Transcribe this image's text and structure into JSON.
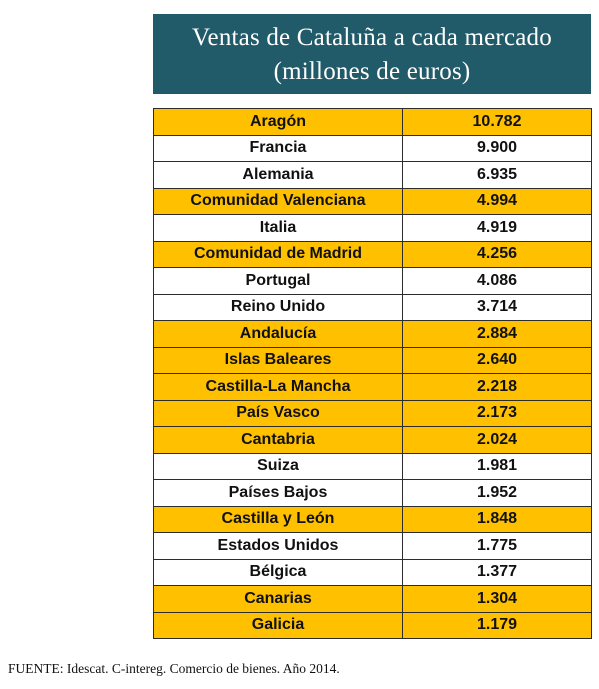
{
  "title": {
    "line1": "Ventas de Cataluña a cada mercado",
    "line2": "(millones de euros)"
  },
  "colors": {
    "title_background": "#215a68",
    "highlight_row": "#ffc000",
    "plain_row": "#ffffff"
  },
  "rows": [
    {
      "market": "Aragón",
      "value": "10.782",
      "highlighted": true
    },
    {
      "market": "Francia",
      "value": "9.900",
      "highlighted": false
    },
    {
      "market": "Alemania",
      "value": "6.935",
      "highlighted": false
    },
    {
      "market": "Comunidad Valenciana",
      "value": "4.994",
      "highlighted": true
    },
    {
      "market": "Italia",
      "value": "4.919",
      "highlighted": false
    },
    {
      "market": "Comunidad de Madrid",
      "value": "4.256",
      "highlighted": true
    },
    {
      "market": "Portugal",
      "value": "4.086",
      "highlighted": false
    },
    {
      "market": "Reino Unido",
      "value": "3.714",
      "highlighted": false
    },
    {
      "market": "Andalucía",
      "value": "2.884",
      "highlighted": true
    },
    {
      "market": "Islas Baleares",
      "value": "2.640",
      "highlighted": true
    },
    {
      "market": "Castilla-La Mancha",
      "value": "2.218",
      "highlighted": true
    },
    {
      "market": "País Vasco",
      "value": "2.173",
      "highlighted": true
    },
    {
      "market": "Cantabria",
      "value": "2.024",
      "highlighted": true
    },
    {
      "market": "Suiza",
      "value": "1.981",
      "highlighted": false
    },
    {
      "market": "Países Bajos",
      "value": "1.952",
      "highlighted": false
    },
    {
      "market": "Castilla y León",
      "value": "1.848",
      "highlighted": true
    },
    {
      "market": "Estados Unidos",
      "value": "1.775",
      "highlighted": false
    },
    {
      "market": "Bélgica",
      "value": "1.377",
      "highlighted": false
    },
    {
      "market": "Canarias",
      "value": "1.304",
      "highlighted": true
    },
    {
      "market": "Galicia",
      "value": "1.179",
      "highlighted": true
    }
  ],
  "source": "FUENTE: Idescat. C-intereg. Comercio de bienes. Año 2014."
}
